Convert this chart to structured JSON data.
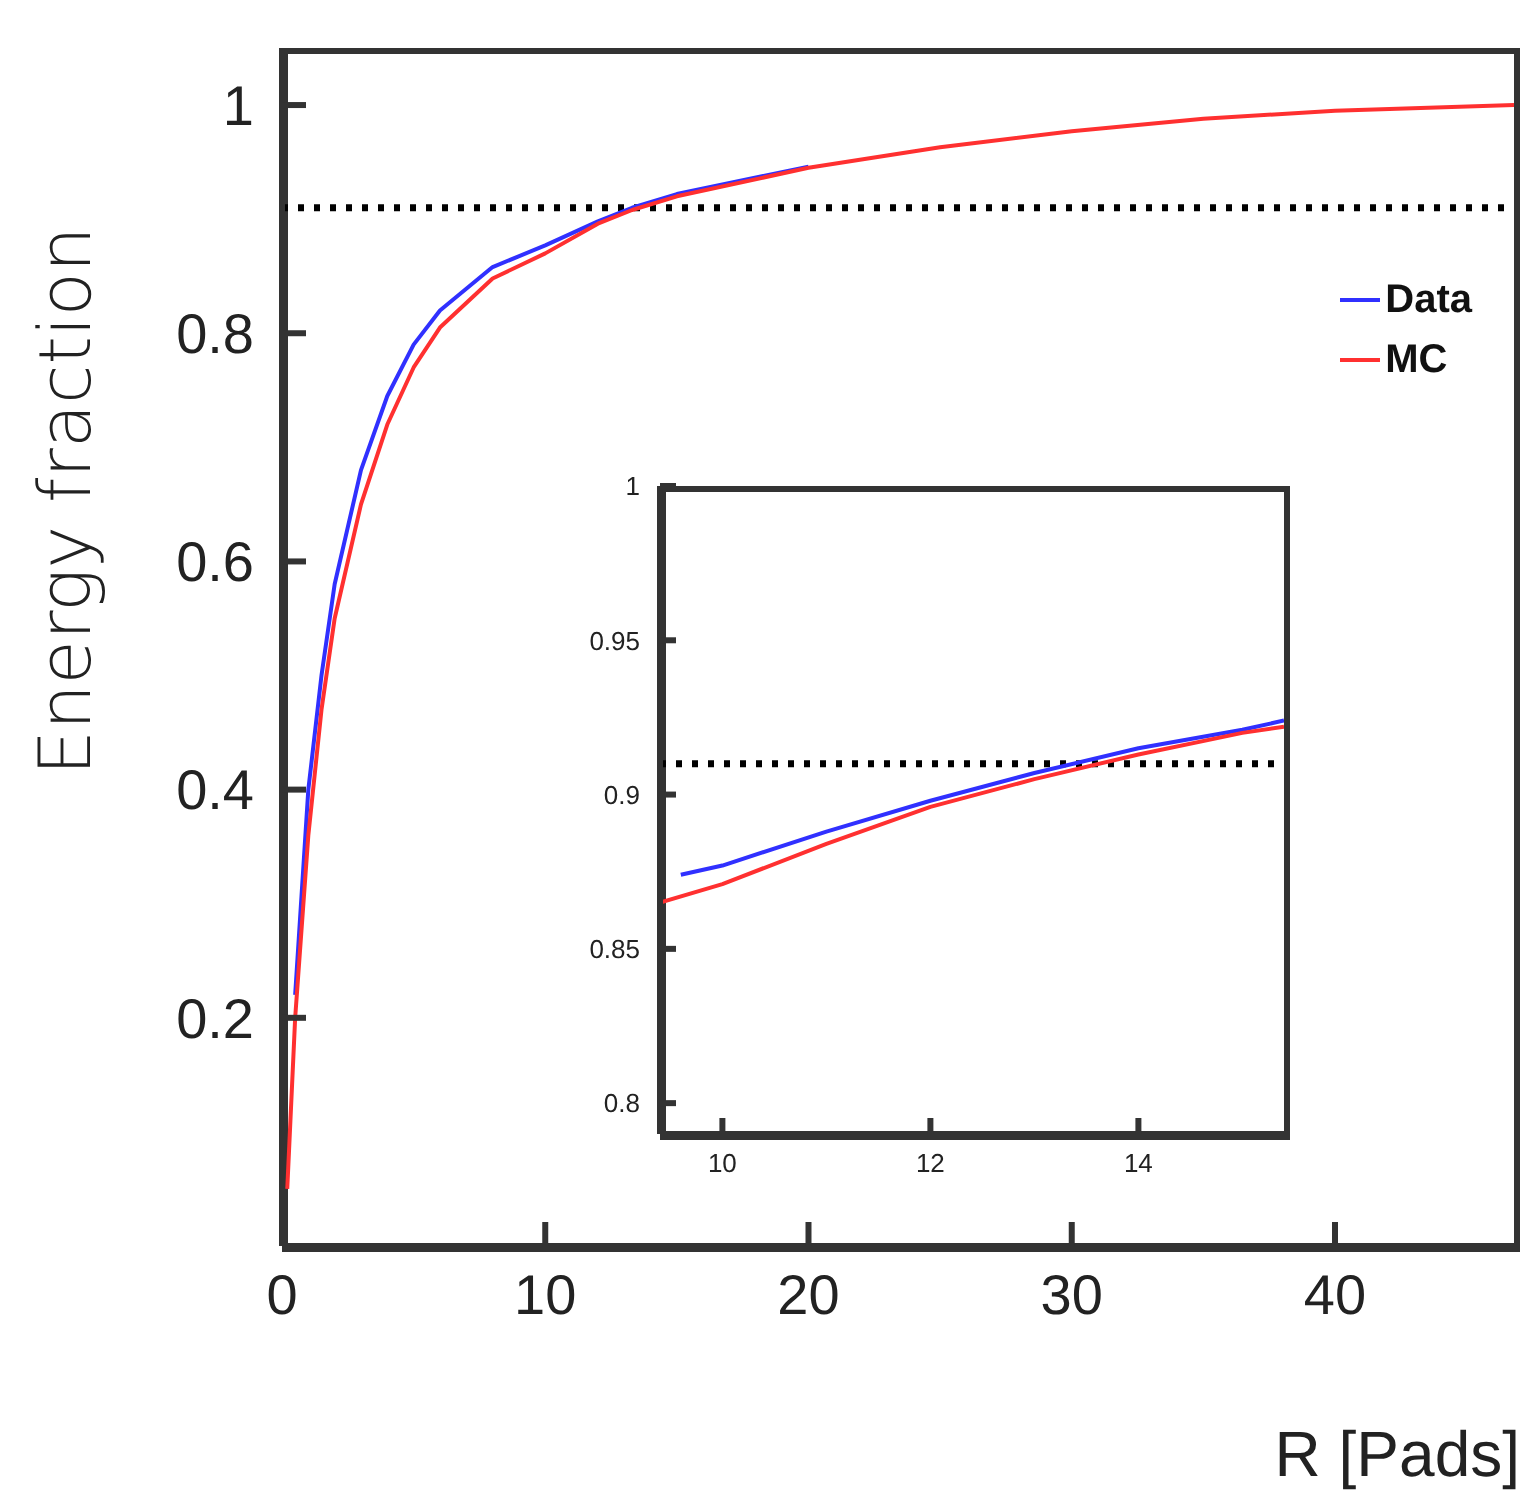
{
  "chart_data": [
    {
      "type": "line",
      "xlabel": "R [Pads]",
      "ylabel": "Energy fraction",
      "xlim": [
        0,
        46.8
      ],
      "ylim": [
        0,
        1.05
      ],
      "xticks": [
        0,
        10,
        20,
        30,
        40
      ],
      "yticks": [
        {
          "value": 0.2,
          "label": "0.2"
        },
        {
          "value": 0.4,
          "label": "0.4"
        },
        {
          "value": 0.6,
          "label": "0.6"
        },
        {
          "value": 0.8,
          "label": "0.8"
        },
        1
      ],
      "grid": false,
      "legend": "top right",
      "marker": "none",
      "line_style": "solid",
      "ref_lines": [
        {
          "axis": "y",
          "value": 0.91,
          "color": "#000000",
          "line_style": "dotted"
        }
      ],
      "series": [
        {
          "name": "Data",
          "color": "#3030ff",
          "x": [
            0.5,
            1,
            1.5,
            2,
            3,
            4,
            5,
            6,
            8,
            10,
            12,
            13.3,
            15,
            20
          ],
          "values": [
            0.22,
            0.4,
            0.5,
            0.58,
            0.68,
            0.745,
            0.79,
            0.82,
            0.858,
            0.877,
            0.898,
            0.91,
            0.922,
            0.946
          ]
        },
        {
          "name": "MC",
          "color": "#ff3030",
          "x": [
            0.2,
            0.5,
            1,
            1.5,
            2,
            3,
            4,
            5,
            6,
            8,
            10,
            12,
            13.3,
            15,
            20,
            25,
            30,
            35,
            40,
            46.8
          ],
          "values": [
            0.05,
            0.2,
            0.36,
            0.47,
            0.55,
            0.65,
            0.72,
            0.77,
            0.805,
            0.848,
            0.87,
            0.896,
            0.908,
            0.92,
            0.945,
            0.963,
            0.977,
            0.988,
            0.995,
            1.0
          ]
        }
      ]
    },
    {
      "type": "line",
      "xlim": [
        9.4,
        15.4
      ],
      "ylim": [
        0.79,
        1
      ],
      "xticks": [
        10,
        12,
        14
      ],
      "yticks": [
        0.8,
        0.85,
        0.9,
        0.95,
        1
      ],
      "grid": false,
      "marker": "none",
      "line_style": "solid",
      "ref_lines": [
        {
          "axis": "y",
          "value": 0.91,
          "color": "#000000",
          "line_style": "dotted"
        }
      ],
      "series": [
        {
          "color": "#3030ff",
          "x": [
            9.6,
            10,
            11,
            12,
            13,
            14,
            15,
            15.4
          ],
          "values": [
            0.874,
            0.877,
            0.888,
            0.898,
            0.907,
            0.915,
            0.921,
            0.924
          ]
        },
        {
          "color": "#ff3030",
          "x": [
            9.4,
            10,
            11,
            12,
            13,
            14,
            15,
            15.4
          ],
          "values": [
            0.865,
            0.871,
            0.884,
            0.896,
            0.905,
            0.913,
            0.92,
            0.922
          ]
        }
      ]
    }
  ]
}
